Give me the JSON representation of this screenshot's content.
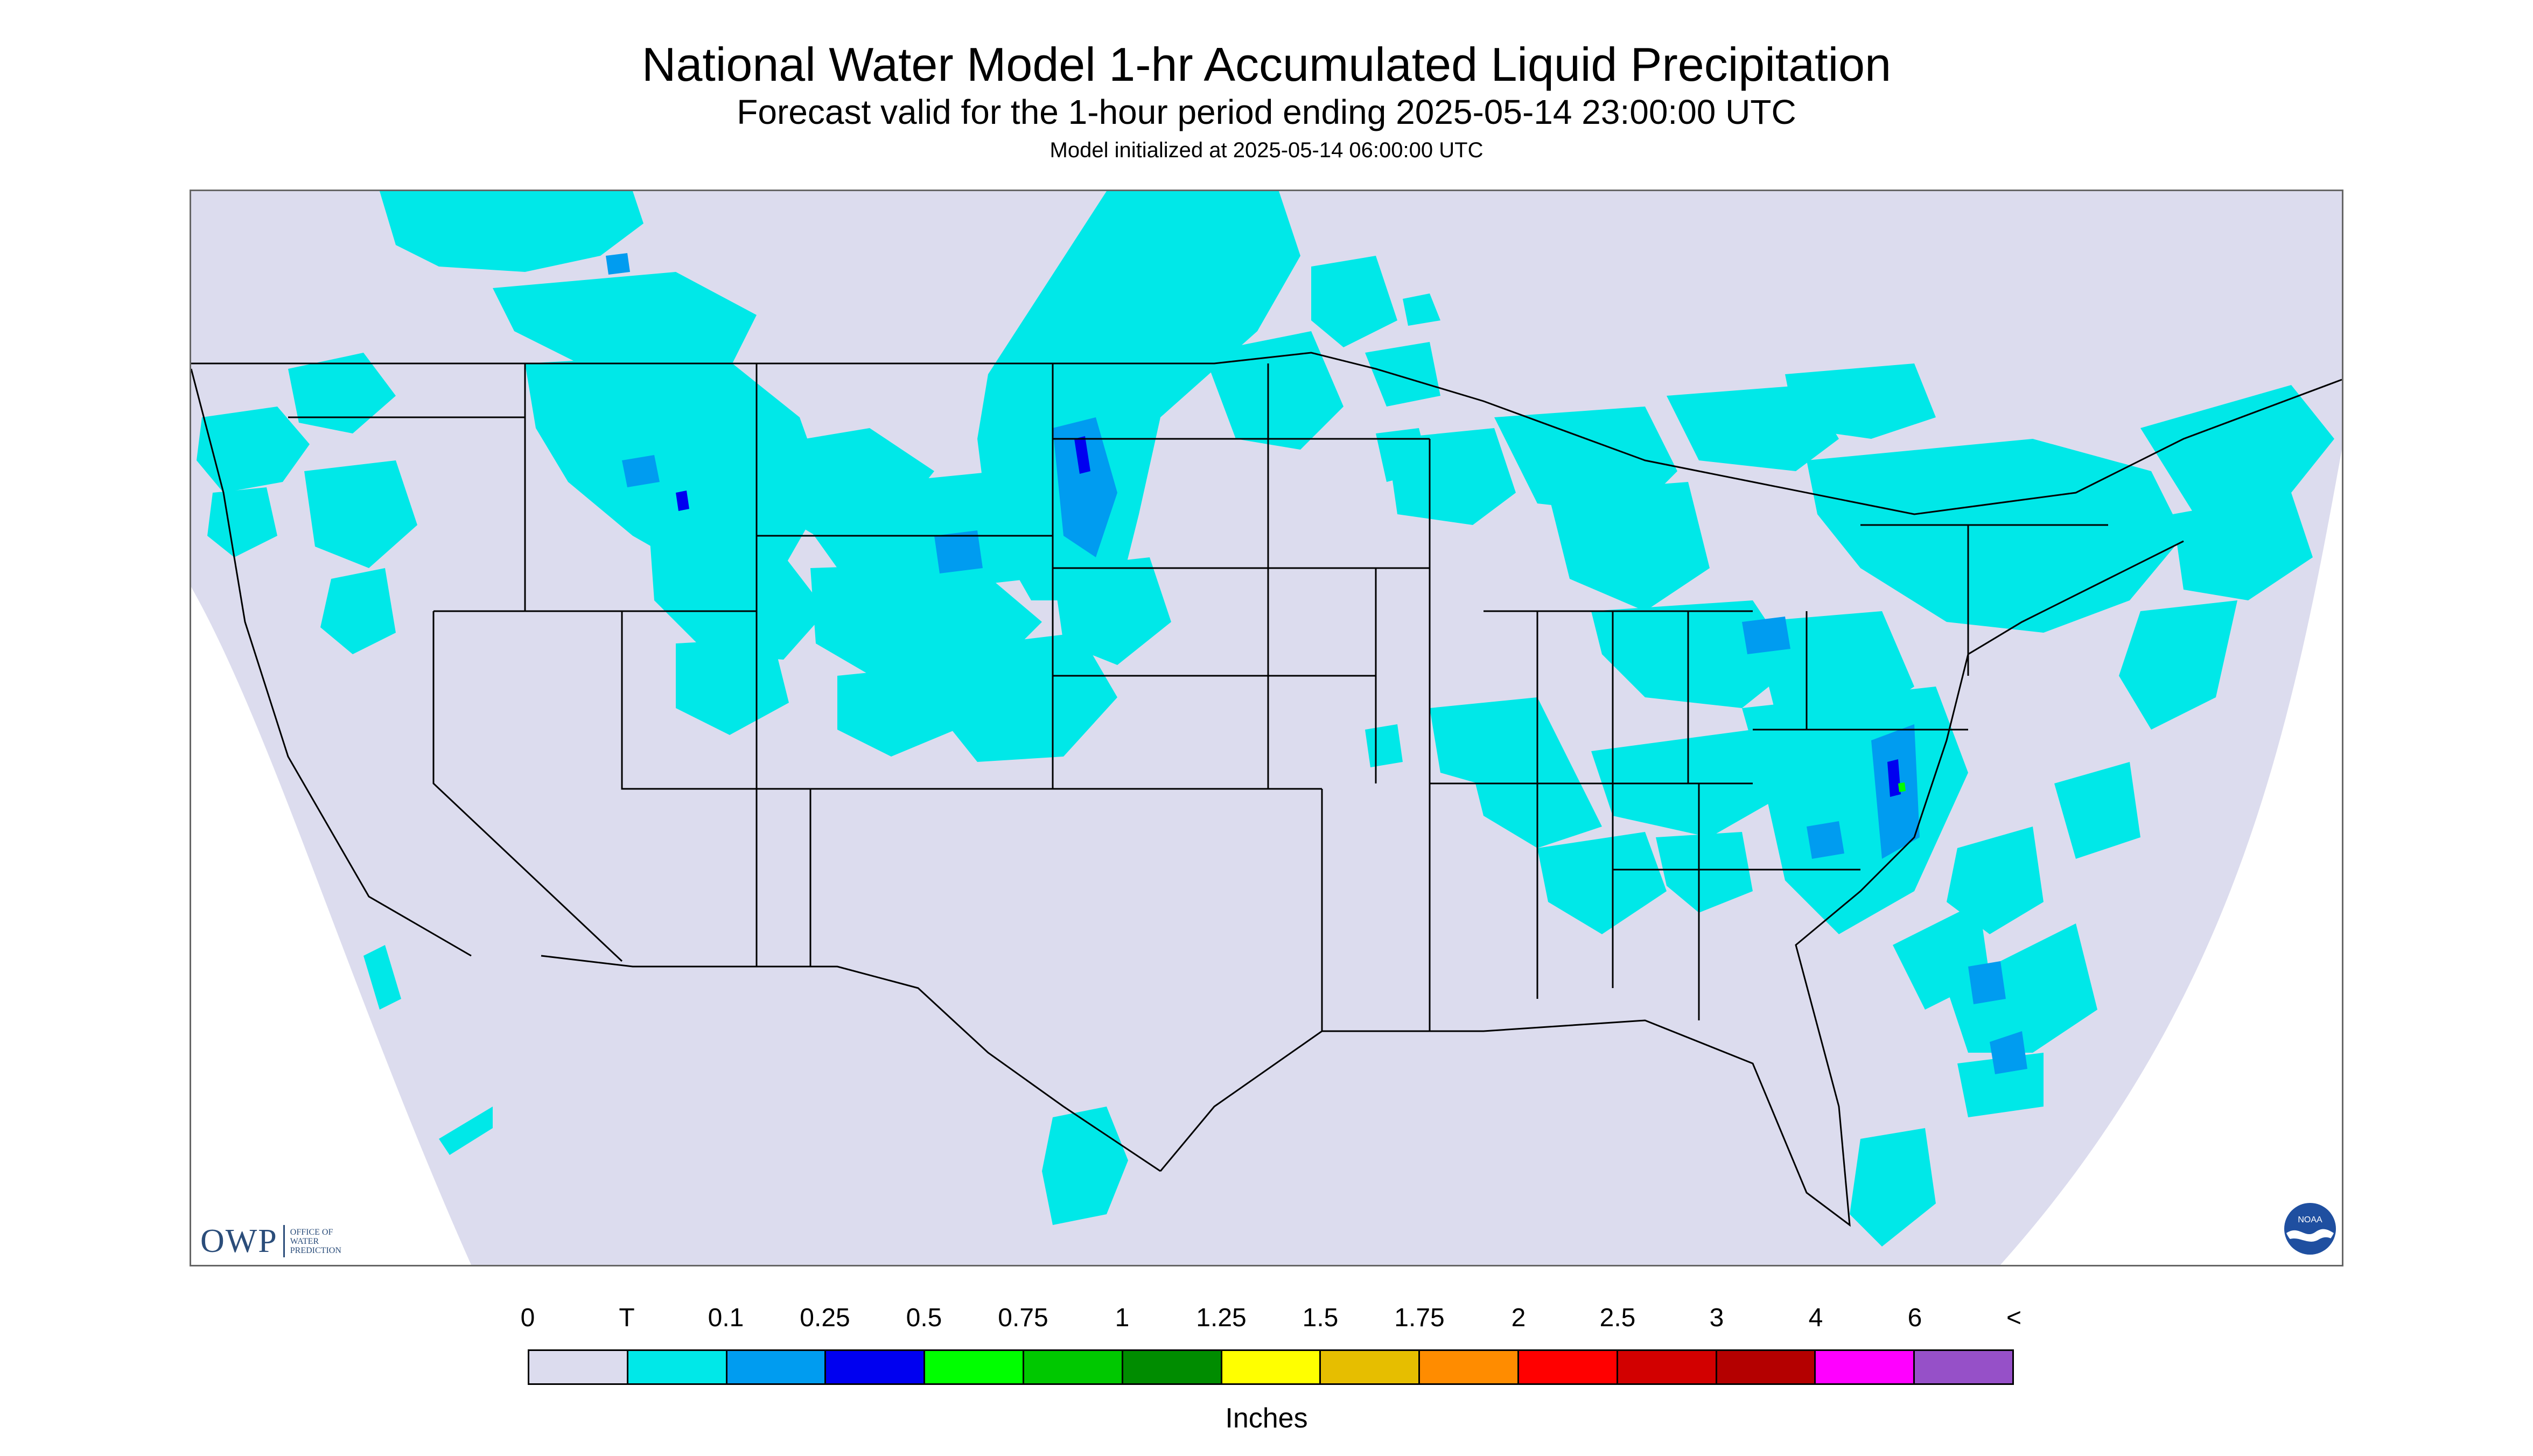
{
  "header": {
    "title": "National Water Model 1-hr Accumulated Liquid Precipitation",
    "subtitle": "Forecast valid for the 1-hour period ending 2025-05-14 23:00:00 UTC",
    "initialized": "Model initialized at 2025-05-14 06:00:00 UTC"
  },
  "logos": {
    "owp_main": "OWP",
    "owp_line1": "OFFICE OF",
    "owp_line2": "WATER",
    "owp_line3": "PREDICTION",
    "noaa_text": "NOAA",
    "noaa_icon": "noaa-logo-icon"
  },
  "map": {
    "domain_color": "#dcdcee",
    "outside_color": "#ffffff",
    "boundary_color": "#000000"
  },
  "legend": {
    "units": "Inches",
    "labels": [
      "0",
      "T",
      "0.1",
      "0.25",
      "0.5",
      "0.75",
      "1",
      "1.25",
      "1.5",
      "1.75",
      "2",
      "2.5",
      "3",
      "4",
      "6",
      "<"
    ],
    "colors": [
      "#dcdcee",
      "#00e8e8",
      "#009cf0",
      "#0000f0",
      "#00ff00",
      "#00c800",
      "#008c00",
      "#ffff00",
      "#e6be00",
      "#ff8c00",
      "#ff0000",
      "#d20000",
      "#b40000",
      "#ff00ff",
      "#9650c8"
    ]
  }
}
